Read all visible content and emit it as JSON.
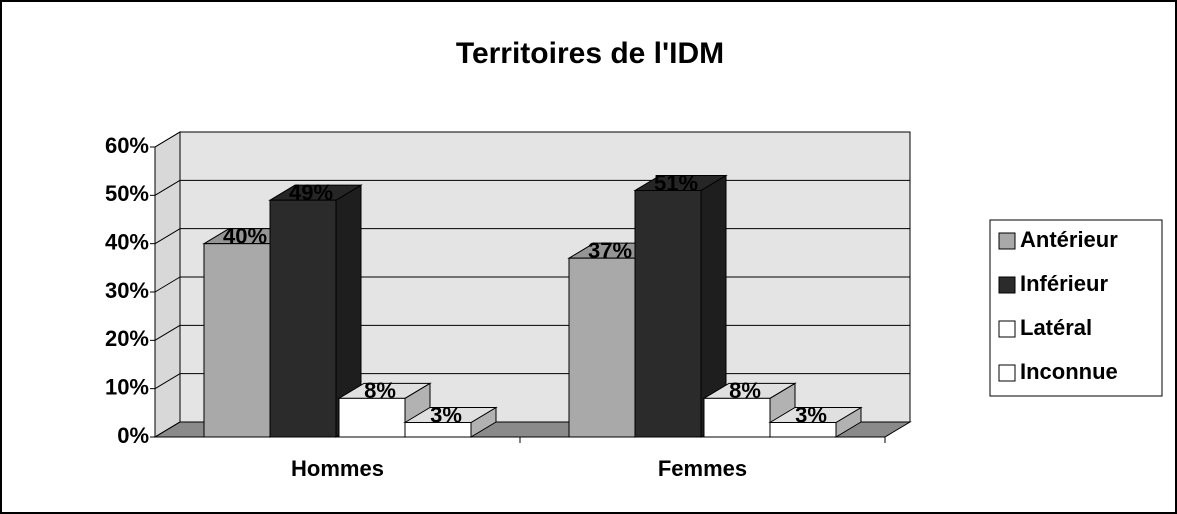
{
  "chart_data": {
    "type": "bar3d",
    "title": "Territoires de l'IDM",
    "categories": [
      "Hommes",
      "Femmes"
    ],
    "series": [
      {
        "name": "Antérieur",
        "color": "#a9a9a9",
        "values": [
          40,
          37
        ],
        "value_labels": [
          "40%",
          "37%"
        ]
      },
      {
        "name": "Inférieur",
        "color": "#2b2b2b",
        "values": [
          49,
          51
        ],
        "value_labels": [
          "49%",
          "51%"
        ]
      },
      {
        "name": "Latéral",
        "color": "#ffffff",
        "values": [
          8,
          8
        ],
        "value_labels": [
          "8%",
          "8%"
        ]
      },
      {
        "name": "Inconnue",
        "color": "#ffffff",
        "values": [
          3,
          3
        ],
        "value_labels": [
          "3%",
          "3%"
        ]
      }
    ],
    "ylim": [
      0,
      60
    ],
    "yticks": [
      {
        "value": 0,
        "label": "0%"
      },
      {
        "value": 10,
        "label": "10%"
      },
      {
        "value": 20,
        "label": "20%"
      },
      {
        "value": 30,
        "label": "30%"
      },
      {
        "value": 40,
        "label": "40%"
      },
      {
        "value": 50,
        "label": "50%"
      },
      {
        "value": 60,
        "label": "60%"
      }
    ],
    "grid": true,
    "legend": "right"
  }
}
